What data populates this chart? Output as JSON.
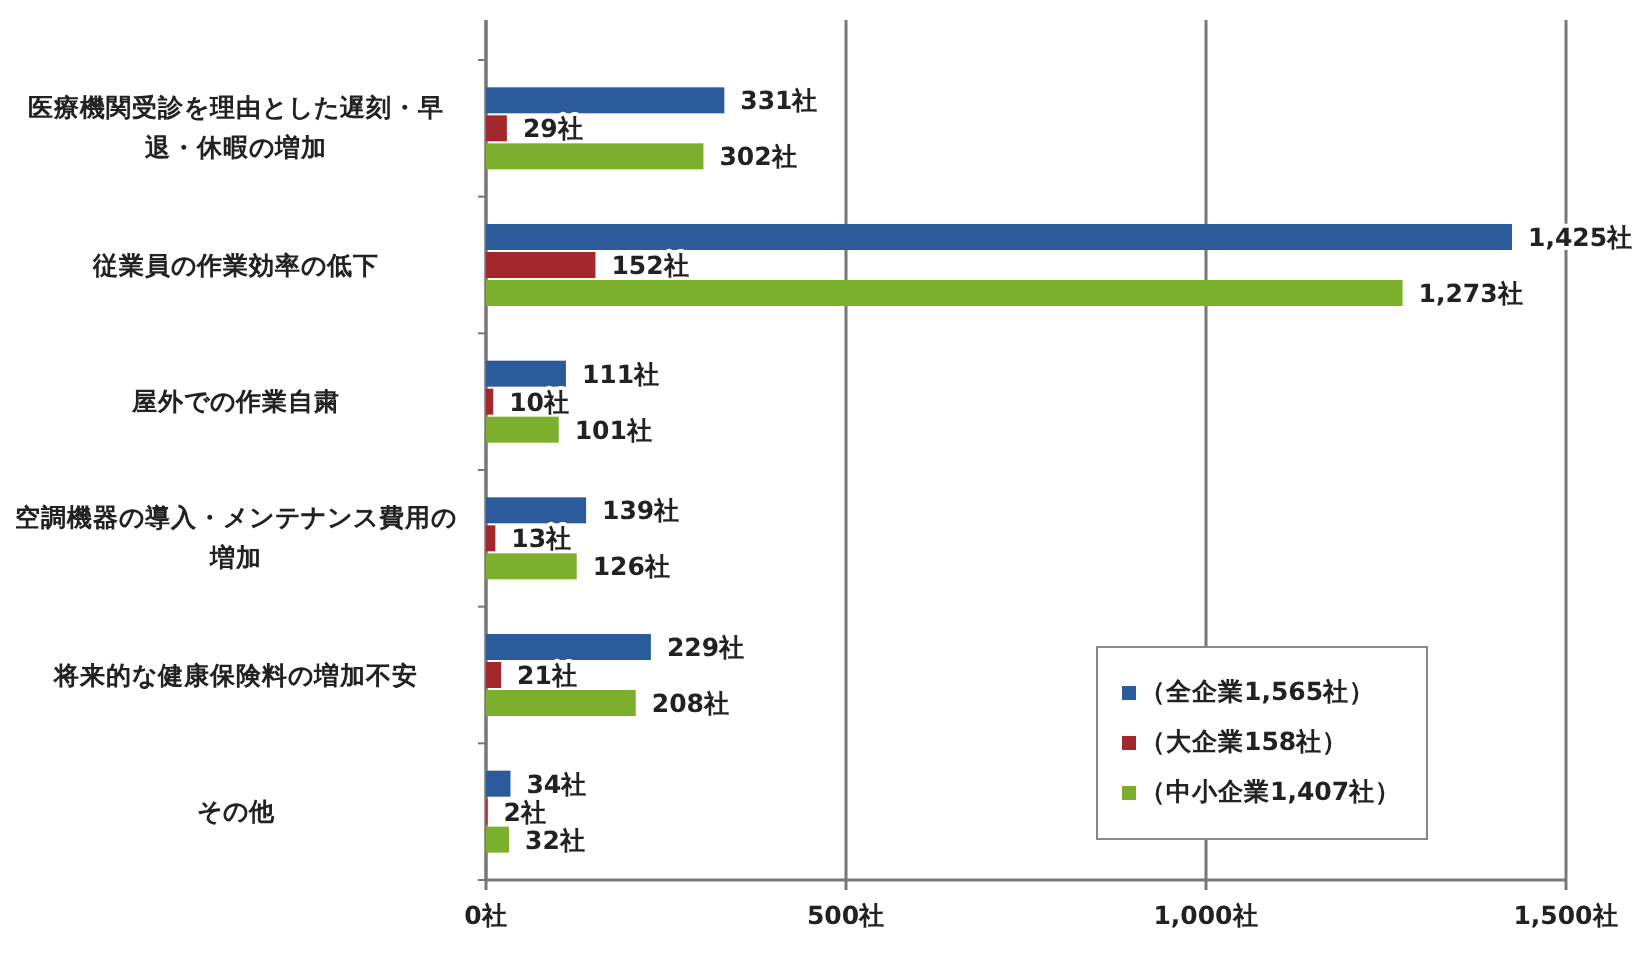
{
  "chart_data": {
    "type": "bar",
    "orientation": "horizontal",
    "categories": [
      "医療機関受診を理由とした遅刻・早退・休暇の増加",
      "従業員の作業効率の低下",
      "屋外での作業自粛",
      "空調機器の導入・メンテナンス費用の増加",
      "将来的な健康保険料の増加不安",
      "その他"
    ],
    "series": [
      {
        "name": "（全企業1,565社）",
        "color": "#2b5b9b",
        "values": [
          331,
          1425,
          111,
          139,
          229,
          34
        ],
        "value_labels": [
          "331社",
          "1,425社",
          "111社",
          "139社",
          "229社",
          "34社"
        ]
      },
      {
        "name": "（大企業158社）",
        "color": "#a3272d",
        "values": [
          29,
          152,
          10,
          13,
          21,
          2
        ],
        "value_labels": [
          "29社",
          "152社",
          "10社",
          "13社",
          "21社",
          "2社"
        ]
      },
      {
        "name": "（中小企業1,407社）",
        "color": "#7cb02c",
        "values": [
          302,
          1273,
          101,
          126,
          208,
          32
        ],
        "value_labels": [
          "302社",
          "1,273社",
          "101社",
          "126社",
          "208社",
          "32社"
        ]
      }
    ],
    "xlim": [
      0,
      1500
    ],
    "xticks": [
      {
        "value": 0,
        "label": "0社"
      },
      {
        "value": 500,
        "label": "500社"
      },
      {
        "value": 1000,
        "label": "1,000社"
      },
      {
        "value": 1500,
        "label": "1,500社"
      }
    ],
    "grid": "x",
    "legend": "bottom right"
  }
}
